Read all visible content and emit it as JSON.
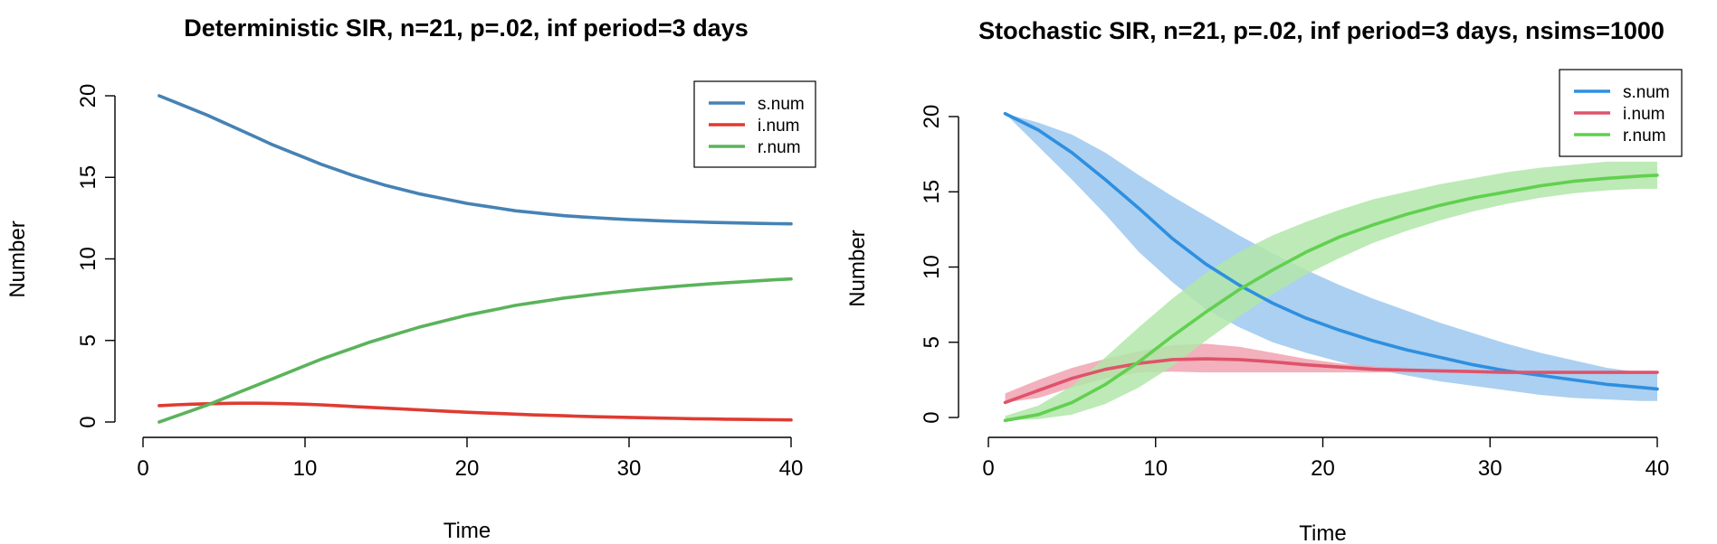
{
  "chart_data": [
    {
      "type": "line",
      "title": "Deterministic SIR, n=21, p=.02, inf period=3 days",
      "xlabel": "Time",
      "ylabel": "Number",
      "xlim": [
        0,
        40
      ],
      "ylim": [
        0,
        20
      ],
      "xticks": [
        0,
        10,
        20,
        30,
        40
      ],
      "yticks": [
        0,
        5,
        10,
        15,
        20
      ],
      "legend_position": "top-right",
      "x": [
        1,
        2,
        3,
        4,
        5,
        6,
        7,
        8,
        9,
        10,
        11,
        12,
        13,
        14,
        15,
        16,
        17,
        18,
        19,
        20,
        21,
        22,
        23,
        24,
        25,
        26,
        27,
        28,
        29,
        30,
        31,
        32,
        33,
        34,
        35,
        36,
        37,
        38,
        39,
        40
      ],
      "series": [
        {
          "name": "s.num",
          "color": "#4682B4",
          "values": [
            20.0,
            19.6,
            19.2,
            18.8,
            18.35,
            17.9,
            17.45,
            17.0,
            16.6,
            16.2,
            15.8,
            15.45,
            15.1,
            14.8,
            14.5,
            14.25,
            14.0,
            13.8,
            13.6,
            13.4,
            13.25,
            13.1,
            12.95,
            12.85,
            12.75,
            12.65,
            12.58,
            12.52,
            12.46,
            12.41,
            12.37,
            12.33,
            12.3,
            12.27,
            12.24,
            12.22,
            12.2,
            12.18,
            12.16,
            12.15
          ]
        },
        {
          "name": "i.num",
          "color": "#DF3B32",
          "values": [
            1.0,
            1.05,
            1.09,
            1.12,
            1.14,
            1.15,
            1.15,
            1.14,
            1.12,
            1.09,
            1.05,
            1.0,
            0.95,
            0.9,
            0.85,
            0.8,
            0.75,
            0.7,
            0.65,
            0.6,
            0.56,
            0.52,
            0.48,
            0.44,
            0.41,
            0.38,
            0.35,
            0.32,
            0.3,
            0.28,
            0.26,
            0.24,
            0.22,
            0.2,
            0.19,
            0.17,
            0.16,
            0.15,
            0.14,
            0.13
          ]
        },
        {
          "name": "r.num",
          "color": "#5BB35B",
          "values": [
            0.0,
            0.35,
            0.7,
            1.05,
            1.45,
            1.85,
            2.25,
            2.65,
            3.05,
            3.45,
            3.85,
            4.2,
            4.55,
            4.9,
            5.2,
            5.5,
            5.8,
            6.05,
            6.3,
            6.55,
            6.75,
            6.95,
            7.15,
            7.3,
            7.45,
            7.6,
            7.72,
            7.84,
            7.95,
            8.05,
            8.15,
            8.24,
            8.32,
            8.4,
            8.47,
            8.54,
            8.6,
            8.66,
            8.72,
            8.77
          ]
        }
      ]
    },
    {
      "type": "line",
      "title": "Stochastic SIR, n=21, p=.02, inf period=3 days, nsims=1000",
      "xlabel": "Time",
      "ylabel": "Number",
      "xlim": [
        0,
        40
      ],
      "ylim": [
        0,
        20
      ],
      "xticks": [
        0,
        10,
        20,
        30,
        40
      ],
      "yticks": [
        0,
        5,
        10,
        15,
        20
      ],
      "legend_position": "top-right",
      "x": [
        1,
        3,
        5,
        7,
        9,
        11,
        13,
        15,
        17,
        19,
        21,
        23,
        25,
        27,
        29,
        31,
        33,
        35,
        37,
        39,
        40
      ],
      "series": [
        {
          "name": "s.num",
          "color": "#2E8FE0",
          "band_color": "#9CC8EE",
          "values": [
            20.2,
            19.1,
            17.6,
            15.8,
            13.9,
            11.9,
            10.2,
            8.8,
            7.6,
            6.6,
            5.8,
            5.1,
            4.5,
            4.0,
            3.5,
            3.1,
            2.8,
            2.5,
            2.2,
            2.0,
            1.9
          ],
          "lower": [
            20.2,
            18.0,
            15.8,
            13.5,
            11.0,
            9.0,
            7.2,
            6.0,
            5.0,
            4.3,
            3.7,
            3.2,
            2.8,
            2.4,
            2.1,
            1.8,
            1.5,
            1.3,
            1.2,
            1.1,
            1.1
          ],
          "upper": [
            20.2,
            19.6,
            18.8,
            17.6,
            16.1,
            14.7,
            13.4,
            12.1,
            10.9,
            9.8,
            8.8,
            7.9,
            7.1,
            6.3,
            5.6,
            4.9,
            4.3,
            3.8,
            3.3,
            3.0,
            2.9
          ]
        },
        {
          "name": "i.num",
          "color": "#DF536B",
          "band_color": "#F0A3B0",
          "values": [
            1.0,
            1.8,
            2.6,
            3.2,
            3.6,
            3.85,
            3.9,
            3.85,
            3.7,
            3.5,
            3.35,
            3.2,
            3.15,
            3.1,
            3.05,
            3.0,
            3.0,
            3.0,
            3.0,
            3.0,
            3.0
          ],
          "lower": [
            1.0,
            1.3,
            2.0,
            2.6,
            3.0,
            3.05,
            3.0,
            3.0,
            3.0,
            3.0,
            3.0,
            3.0,
            3.0,
            3.0,
            3.0,
            3.0,
            3.0,
            3.0,
            3.0,
            3.0,
            3.0
          ],
          "upper": [
            1.6,
            2.5,
            3.3,
            3.9,
            4.4,
            4.8,
            4.9,
            4.7,
            4.3,
            3.9,
            3.6,
            3.4,
            3.25,
            3.15,
            3.1,
            3.05,
            3.05,
            3.0,
            3.0,
            3.0,
            3.0
          ]
        },
        {
          "name": "r.num",
          "color": "#61D04F",
          "band_color": "#B2E6A9",
          "values": [
            -0.2,
            0.2,
            1.0,
            2.2,
            3.7,
            5.4,
            7.0,
            8.5,
            9.8,
            11.0,
            12.0,
            12.8,
            13.5,
            14.1,
            14.6,
            15.0,
            15.4,
            15.7,
            15.9,
            16.05,
            16.1
          ],
          "lower": [
            -0.2,
            -0.1,
            0.2,
            0.9,
            2.0,
            3.4,
            5.1,
            6.7,
            8.2,
            9.5,
            10.6,
            11.6,
            12.4,
            13.1,
            13.7,
            14.2,
            14.6,
            14.9,
            15.1,
            15.2,
            15.2
          ],
          "upper": [
            0.1,
            0.8,
            2.1,
            4.0,
            6.0,
            7.9,
            9.6,
            11.0,
            12.1,
            13.0,
            13.8,
            14.5,
            15.0,
            15.5,
            15.9,
            16.3,
            16.6,
            16.8,
            17.0,
            17.0,
            17.0
          ]
        }
      ]
    }
  ]
}
